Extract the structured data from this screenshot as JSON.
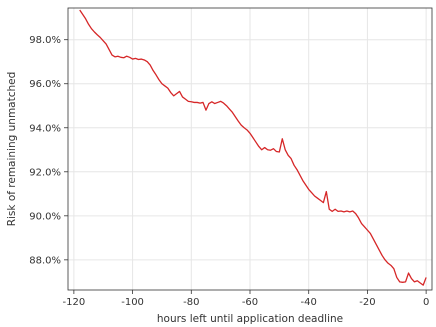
{
  "chart_data": {
    "type": "line",
    "title": "",
    "xlabel": "hours left until application deadline",
    "ylabel": "Risk of remaining unmatched",
    "xlim": [
      -122,
      2
    ],
    "ylim": [
      0.8663,
      0.9944
    ],
    "xticks": [
      -120,
      -100,
      -80,
      -60,
      -40,
      -20,
      0
    ],
    "xtick_labels": [
      "-120",
      "-100",
      "-80",
      "-60",
      "-40",
      "-20",
      "0"
    ],
    "yticks": [
      0.88,
      0.9,
      0.92,
      0.94,
      0.96,
      0.98
    ],
    "ytick_labels": [
      "88.0%",
      "90.0%",
      "92.0%",
      "94.0%",
      "96.0%",
      "98.0%"
    ],
    "grid": true,
    "line_color": "#d62728",
    "series": [
      {
        "x": [
          -118,
          -117,
          -116,
          -115,
          -114,
          -113,
          -112,
          -111,
          -110,
          -109,
          -108,
          -107,
          -106,
          -105,
          -104,
          -103,
          -102,
          -101,
          -100,
          -99,
          -98,
          -97,
          -96,
          -95,
          -94,
          -93,
          -92,
          -91,
          -90,
          -89,
          -88,
          -87,
          -86,
          -85,
          -84,
          -83,
          -82,
          -81,
          -80,
          -79,
          -78,
          -77,
          -76,
          -75,
          -74,
          -73,
          -72,
          -71,
          -70,
          -69,
          -68,
          -67,
          -66,
          -65,
          -64,
          -63,
          -62,
          -61,
          -60,
          -59,
          -58,
          -57,
          -56,
          -55,
          -54,
          -53,
          -52,
          -51,
          -50,
          -49,
          -48,
          -47,
          -46,
          -45,
          -44,
          -43,
          -42,
          -41,
          -40,
          -39,
          -38,
          -37,
          -36,
          -35,
          -34,
          -33,
          -32,
          -31,
          -30,
          -29,
          -28,
          -27,
          -26,
          -25,
          -24,
          -23,
          -22,
          -21,
          -20,
          -19,
          -18,
          -17,
          -16,
          -15,
          -14,
          -13,
          -12,
          -11,
          -10,
          -9,
          -8,
          -7,
          -6,
          -5,
          -4,
          -3,
          -2,
          -1,
          0
        ],
        "y": [
          0.9935,
          0.9915,
          0.9895,
          0.987,
          0.985,
          0.9835,
          0.9822,
          0.981,
          0.9795,
          0.978,
          0.9755,
          0.973,
          0.9722,
          0.9725,
          0.972,
          0.9718,
          0.9725,
          0.972,
          0.9712,
          0.9715,
          0.971,
          0.9712,
          0.9708,
          0.97,
          0.9685,
          0.966,
          0.964,
          0.9618,
          0.96,
          0.959,
          0.958,
          0.956,
          0.9545,
          0.9555,
          0.9565,
          0.954,
          0.953,
          0.952,
          0.9518,
          0.9515,
          0.9515,
          0.9512,
          0.9515,
          0.948,
          0.951,
          0.9518,
          0.951,
          0.9515,
          0.952,
          0.9512,
          0.95,
          0.9485,
          0.947,
          0.945,
          0.943,
          0.9412,
          0.94,
          0.939,
          0.9375,
          0.9355,
          0.9335,
          0.9315,
          0.93,
          0.931,
          0.93,
          0.9298,
          0.9305,
          0.9292,
          0.929,
          0.935,
          0.93,
          0.9275,
          0.926,
          0.923,
          0.921,
          0.9185,
          0.916,
          0.914,
          0.912,
          0.9105,
          0.909,
          0.908,
          0.907,
          0.906,
          0.911,
          0.903,
          0.902,
          0.903,
          0.902,
          0.9022,
          0.9018,
          0.9022,
          0.9018,
          0.9022,
          0.901,
          0.899,
          0.8965,
          0.895,
          0.8935,
          0.892,
          0.8895,
          0.887,
          0.8845,
          0.882,
          0.88,
          0.8785,
          0.8775,
          0.876,
          0.872,
          0.87,
          0.8698,
          0.87,
          0.874,
          0.8715,
          0.87,
          0.8705,
          0.8695,
          0.8685,
          0.872
        ]
      }
    ]
  }
}
